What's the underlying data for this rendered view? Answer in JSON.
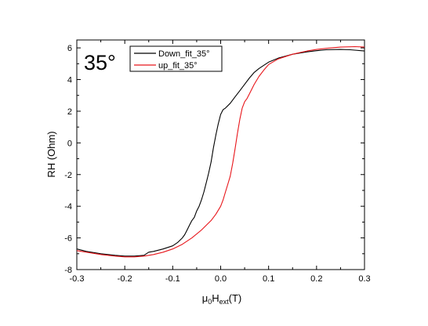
{
  "chart_data": {
    "type": "line",
    "angle_label": "35°",
    "xlabel": {
      "mu": "μ",
      "mu_sub": "0",
      "h": "H",
      "h_sub": "ext",
      "unit": "(T)"
    },
    "ylabel": "RH (Ohm)",
    "xlim": [
      -0.3,
      0.3
    ],
    "ylim": [
      -8,
      6.5
    ],
    "x_ticks": [
      -0.3,
      -0.2,
      -0.1,
      0.0,
      0.1,
      0.2,
      0.3
    ],
    "x_tick_labels": [
      "-0.3",
      "-0.2",
      "-0.1",
      "0.0",
      "0.1",
      "0.2",
      "0.3"
    ],
    "y_ticks": [
      -8,
      -6,
      -4,
      -2,
      0,
      2,
      4,
      6
    ],
    "y_tick_labels": [
      "-8",
      "-6",
      "-4",
      "-2",
      "0",
      "2",
      "4",
      "6"
    ],
    "legend_position": "top-left",
    "series": [
      {
        "name": "Down_fit_35°",
        "color": "#000000",
        "x": [
          -0.3,
          -0.28,
          -0.25,
          -0.22,
          -0.2,
          -0.18,
          -0.16,
          -0.155,
          -0.15,
          -0.14,
          -0.12,
          -0.1,
          -0.09,
          -0.08,
          -0.075,
          -0.07,
          -0.065,
          -0.06,
          -0.055,
          -0.05,
          -0.045,
          -0.04,
          -0.035,
          -0.03,
          -0.025,
          -0.02,
          -0.015,
          -0.01,
          -0.005,
          0.0,
          0.005,
          0.01,
          0.02,
          0.03,
          0.04,
          0.05,
          0.06,
          0.07,
          0.08,
          0.09,
          0.1,
          0.12,
          0.15,
          0.18,
          0.2,
          0.22,
          0.25,
          0.27,
          0.3
        ],
        "y": [
          -6.7,
          -6.85,
          -7.0,
          -7.1,
          -7.15,
          -7.15,
          -7.1,
          -7.0,
          -6.9,
          -6.85,
          -6.7,
          -6.5,
          -6.3,
          -6.0,
          -5.8,
          -5.5,
          -5.2,
          -4.9,
          -4.7,
          -4.3,
          -4.0,
          -3.6,
          -3.1,
          -2.5,
          -1.9,
          -1.2,
          -0.3,
          0.5,
          1.2,
          1.8,
          2.1,
          2.2,
          2.5,
          2.9,
          3.3,
          3.7,
          4.1,
          4.45,
          4.7,
          4.9,
          5.1,
          5.35,
          5.6,
          5.75,
          5.82,
          5.88,
          5.9,
          5.88,
          5.8
        ]
      },
      {
        "name": "up_fit_35°",
        "color": "#e8161b",
        "x": [
          -0.3,
          -0.27,
          -0.25,
          -0.22,
          -0.2,
          -0.18,
          -0.16,
          -0.14,
          -0.12,
          -0.1,
          -0.08,
          -0.06,
          -0.04,
          -0.02,
          -0.01,
          0.0,
          0.005,
          0.01,
          0.015,
          0.02,
          0.025,
          0.03,
          0.035,
          0.04,
          0.045,
          0.05,
          0.055,
          0.06,
          0.07,
          0.08,
          0.09,
          0.1,
          0.12,
          0.15,
          0.18,
          0.2,
          0.22,
          0.25,
          0.28,
          0.3
        ],
        "y": [
          -6.8,
          -6.95,
          -7.05,
          -7.15,
          -7.2,
          -7.2,
          -7.15,
          -7.05,
          -6.9,
          -6.7,
          -6.4,
          -6.0,
          -5.5,
          -4.9,
          -4.5,
          -4.0,
          -3.6,
          -3.1,
          -2.6,
          -2.1,
          -1.3,
          -0.4,
          0.6,
          1.5,
          2.2,
          2.6,
          2.8,
          3.1,
          3.7,
          4.2,
          4.6,
          4.95,
          5.3,
          5.6,
          5.8,
          5.9,
          5.97,
          6.05,
          6.08,
          6.05
        ]
      }
    ]
  }
}
